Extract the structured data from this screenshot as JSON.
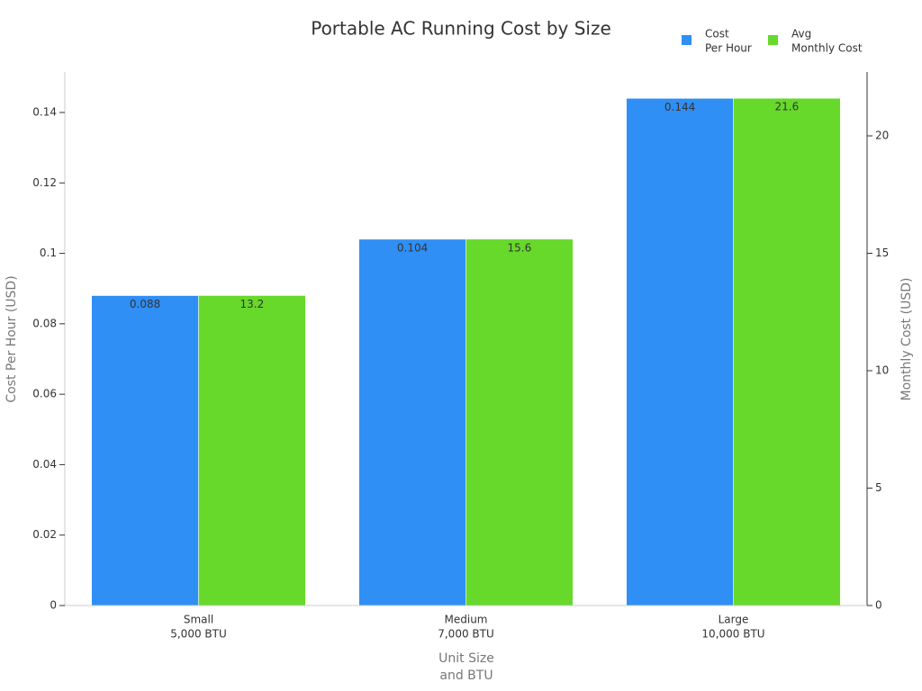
{
  "chart_data": {
    "type": "bar",
    "title": "Portable AC Running Cost by Size",
    "categories": [
      [
        "Small",
        "5,000 BTU"
      ],
      [
        "Medium",
        "7,000 BTU"
      ],
      [
        "Large",
        "10,000 BTU"
      ]
    ],
    "series": [
      {
        "name": [
          "Cost",
          "Per Hour"
        ],
        "color": "#2f8ff5",
        "values": [
          0.088,
          0.104,
          0.144
        ]
      },
      {
        "name": [
          "Avg",
          "Monthly Cost"
        ],
        "color": "#66d92a",
        "values": [
          13.2,
          15.6,
          21.6
        ],
        "axis": "y2"
      }
    ],
    "xlabel": [
      "Unit Size",
      "and BTU"
    ],
    "ylabel": "Cost Per Hour (USD)",
    "y2label": "Monthly Cost (USD)",
    "ylim": [
      0,
      0.1515
    ],
    "yticks": [
      0,
      0.02,
      0.04,
      0.06,
      0.08,
      0.1,
      0.12,
      0.14
    ],
    "y2lim": [
      0,
      22.72
    ],
    "y2ticks": [
      0,
      5,
      10,
      15,
      20
    ],
    "legend": "top-right"
  }
}
